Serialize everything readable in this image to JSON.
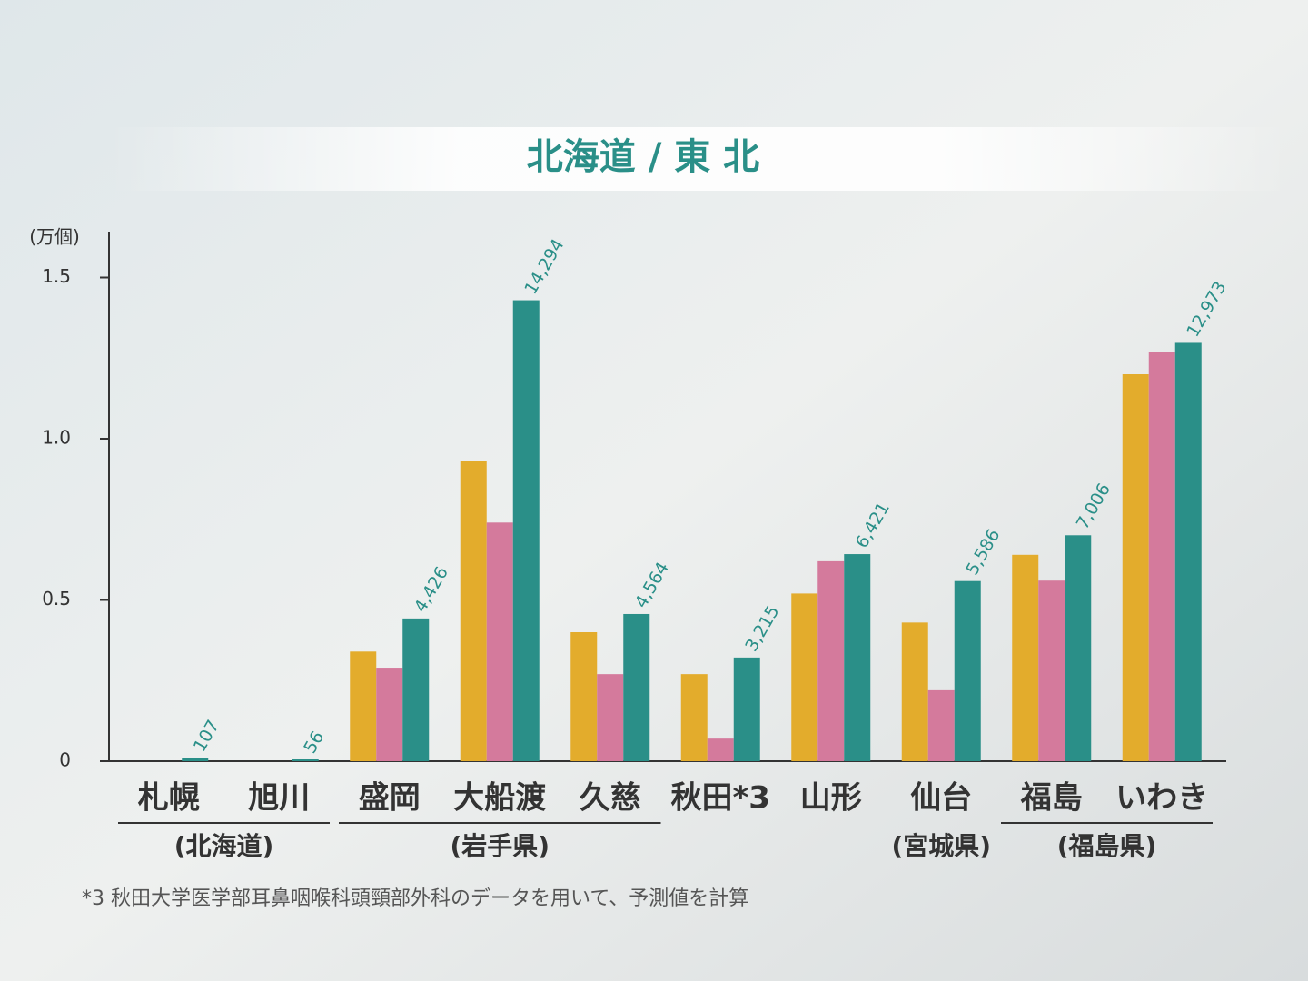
{
  "chart_data": {
    "type": "bar",
    "title": "北海道 / 東 北",
    "y_label": "(万個)",
    "categories": [
      "札幌",
      "旭川",
      "盛岡",
      "大船渡",
      "久慈",
      "秋田*3",
      "山形",
      "仙台",
      "福島",
      "いわき"
    ],
    "groups": [
      {
        "label": "(北海道)",
        "members": [
          "札幌",
          "旭川"
        ]
      },
      {
        "label": "(岩手県)",
        "members": [
          "盛岡",
          "大船渡",
          "久慈"
        ]
      },
      {
        "label": "(宮城県)",
        "members": [
          "仙台"
        ]
      },
      {
        "label": "(福島県)",
        "members": [
          "福島",
          "いわき"
        ]
      }
    ],
    "series": [
      {
        "color": "#e3ac2c",
        "values": [
          null,
          null,
          0.34,
          0.93,
          0.4,
          0.27,
          0.52,
          0.43,
          0.64,
          1.2
        ]
      },
      {
        "color": "#d47a9c",
        "values": [
          null,
          null,
          0.29,
          0.74,
          0.27,
          0.07,
          0.62,
          0.22,
          0.56,
          1.27
        ]
      },
      {
        "color": "#2a8f88",
        "values": [
          0.0107,
          0.0056,
          0.4426,
          1.4294,
          0.4564,
          0.3215,
          0.6421,
          0.5586,
          0.7006,
          1.2973
        ],
        "value_labels": [
          "107",
          "56",
          "4,426",
          "14,294",
          "4,564",
          "3,215",
          "6,421",
          "5,586",
          "7,006",
          "12,973"
        ]
      }
    ],
    "ylim": [
      0,
      1.6
    ],
    "yticks": [
      0,
      0.5,
      {
        "value": 1,
        "label": "1.0"
      },
      1.5
    ],
    "footnote": "*3 秋田大学医学部耳鼻咽喉科頭頸部外科のデータを用いて、予測値を計算"
  }
}
